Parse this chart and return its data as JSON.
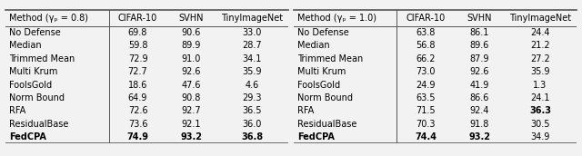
{
  "table1_header": [
    "Method (γₚ = 0.8)",
    "CIFAR-10",
    "SVHN",
    "TinyImageNet"
  ],
  "table2_header": [
    "Method (γₚ = 1.0)",
    "CIFAR-10",
    "SVHN",
    "TinyImageNet"
  ],
  "methods": [
    "No Defense",
    "Median",
    "Trimmed Mean",
    "Multi Krum",
    "FoolsGold",
    "Norm Bound",
    "RFA",
    "ResidualBase",
    "FedCPA"
  ],
  "table1_data": [
    [
      "69.8",
      "90.6",
      "33.0"
    ],
    [
      "59.8",
      "89.9",
      "28.7"
    ],
    [
      "72.9",
      "91.0",
      "34.1"
    ],
    [
      "72.7",
      "92.6",
      "35.9"
    ],
    [
      "18.6",
      "47.6",
      "4.6"
    ],
    [
      "64.9",
      "90.8",
      "29.3"
    ],
    [
      "72.6",
      "92.7",
      "36.5"
    ],
    [
      "73.6",
      "92.1",
      "36.0"
    ],
    [
      "74.9",
      "93.2",
      "36.8"
    ]
  ],
  "table1_bold": [
    [
      false,
      false,
      false
    ],
    [
      false,
      false,
      false
    ],
    [
      false,
      false,
      false
    ],
    [
      false,
      false,
      false
    ],
    [
      false,
      false,
      false
    ],
    [
      false,
      false,
      false
    ],
    [
      false,
      false,
      false
    ],
    [
      false,
      false,
      false
    ],
    [
      true,
      true,
      true
    ]
  ],
  "table2_data": [
    [
      "63.8",
      "86.1",
      "24.4"
    ],
    [
      "56.8",
      "89.6",
      "21.2"
    ],
    [
      "66.2",
      "87.9",
      "27.2"
    ],
    [
      "73.0",
      "92.6",
      "35.9"
    ],
    [
      "24.9",
      "41.9",
      "1.3"
    ],
    [
      "63.5",
      "86.6",
      "24.1"
    ],
    [
      "71.5",
      "92.4",
      "36.3"
    ],
    [
      "70.3",
      "91.8",
      "30.5"
    ],
    [
      "74.4",
      "93.2",
      "34.9"
    ]
  ],
  "table2_bold": [
    [
      false,
      false,
      false
    ],
    [
      false,
      false,
      false
    ],
    [
      false,
      false,
      false
    ],
    [
      false,
      false,
      false
    ],
    [
      false,
      false,
      false
    ],
    [
      false,
      false,
      false
    ],
    [
      false,
      false,
      true
    ],
    [
      false,
      false,
      false
    ],
    [
      true,
      true,
      false
    ]
  ],
  "method_bold": [
    false,
    false,
    false,
    false,
    false,
    false,
    false,
    false,
    true
  ],
  "figsize": [
    6.4,
    1.72
  ],
  "dpi": 100,
  "fontsize": 7.0,
  "header_fontsize": 7.0,
  "bg_color": "#f2f2f2",
  "line_color": "#555555",
  "thick_lw": 1.2,
  "thin_lw": 0.7
}
